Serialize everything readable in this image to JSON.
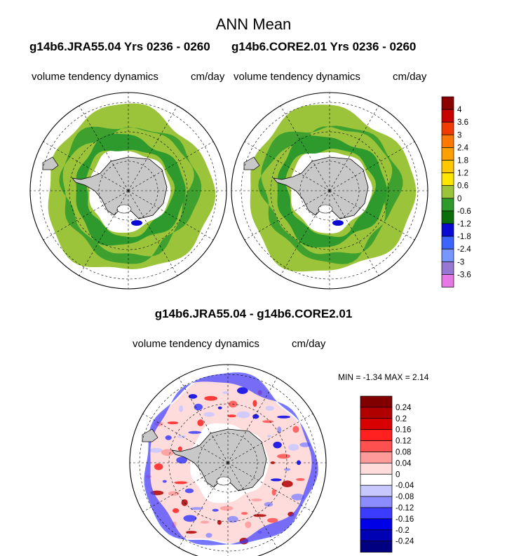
{
  "figure": {
    "title": "ANN Mean",
    "case_left": "g14b6.JRA55.04  Yrs 0236 - 0260",
    "case_right": "g14b6.CORE2.01  Yrs 0236 - 0260",
    "diff_title": "g14b6.JRA55.04 - g14b6.CORE2.01",
    "variable": "volume tendency dynamics",
    "units": "cm/day",
    "minmax": "MIN =  -1.34 MAX =   2.14"
  },
  "chart_data": [
    {
      "type": "heatmap",
      "panel": "g14b6.JRA55.04",
      "projection": "south-polar-stereographic",
      "variable": "volume tendency dynamics",
      "units": "cm/day",
      "dominant_range": [
        -1.2,
        0.6
      ],
      "colorbar": {
        "levels": [
          "4",
          "3.6",
          "3",
          "2.4",
          "1.8",
          "1.2",
          "0.6",
          "0",
          "-0.6",
          "-1.2",
          "-1.8",
          "-2.4",
          "-3",
          "-3.6"
        ],
        "colors": [
          "#8b0000",
          "#c80000",
          "#f03c00",
          "#ff7800",
          "#ffa000",
          "#ffc800",
          "#ffe600",
          "#9cc43a",
          "#2e9a2e",
          "#0a6e0a",
          "#0a0ad2",
          "#3c64ff",
          "#7896ff",
          "#9678d2",
          "#e678e6"
        ]
      }
    },
    {
      "type": "heatmap",
      "panel": "g14b6.CORE2.01",
      "projection": "south-polar-stereographic",
      "variable": "volume tendency dynamics",
      "units": "cm/day",
      "dominant_range": [
        -1.2,
        0.6
      ]
    },
    {
      "type": "heatmap",
      "panel": "g14b6.JRA55.04 - g14b6.CORE2.01",
      "projection": "south-polar-stereographic",
      "variable": "volume tendency dynamics",
      "units": "cm/day",
      "min": -1.34,
      "max": 2.14,
      "colorbar": {
        "levels": [
          "0.24",
          "0.2",
          "0.16",
          "0.12",
          "0.08",
          "0.04",
          "0",
          "-0.04",
          "-0.08",
          "-0.12",
          "-0.16",
          "-0.2",
          "-0.24"
        ],
        "colors": [
          "#800000",
          "#b00000",
          "#d80000",
          "#ff2020",
          "#ff5050",
          "#ff9a9a",
          "#ffdcdc",
          "#ffffff",
          "#c8c8ff",
          "#8c8cff",
          "#3c3cff",
          "#0000e6",
          "#0000b4",
          "#000080"
        ]
      }
    }
  ]
}
